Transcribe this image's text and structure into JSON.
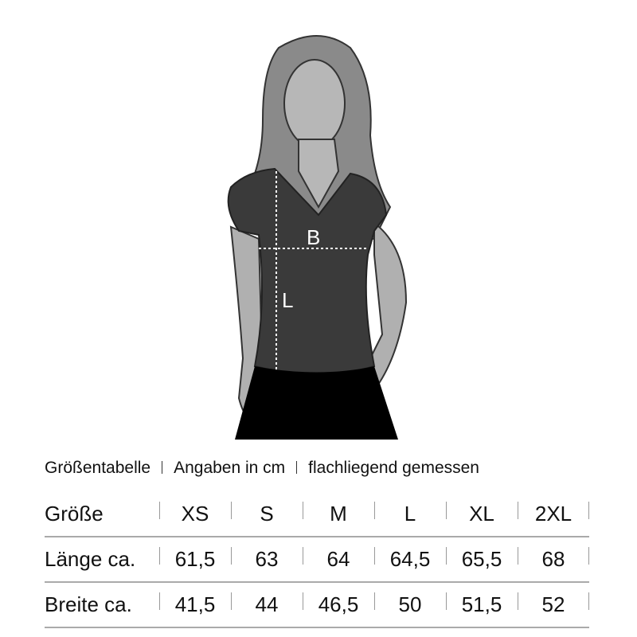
{
  "figure": {
    "measure_width_label": "B",
    "measure_length_label": "L"
  },
  "title": {
    "parts": [
      "Größentabelle",
      "Angaben in cm",
      "flachliegend gemessen"
    ]
  },
  "table": {
    "header": [
      "Größe",
      "XS",
      "S",
      "M",
      "L",
      "XL",
      "2XL"
    ],
    "rows": [
      [
        "Länge ca.",
        "61,5",
        "63",
        "64",
        "64,5",
        "65,5",
        "68"
      ],
      [
        "Breite ca.",
        "41,5",
        "44",
        "46,5",
        "50",
        "51,5",
        "52"
      ]
    ]
  }
}
